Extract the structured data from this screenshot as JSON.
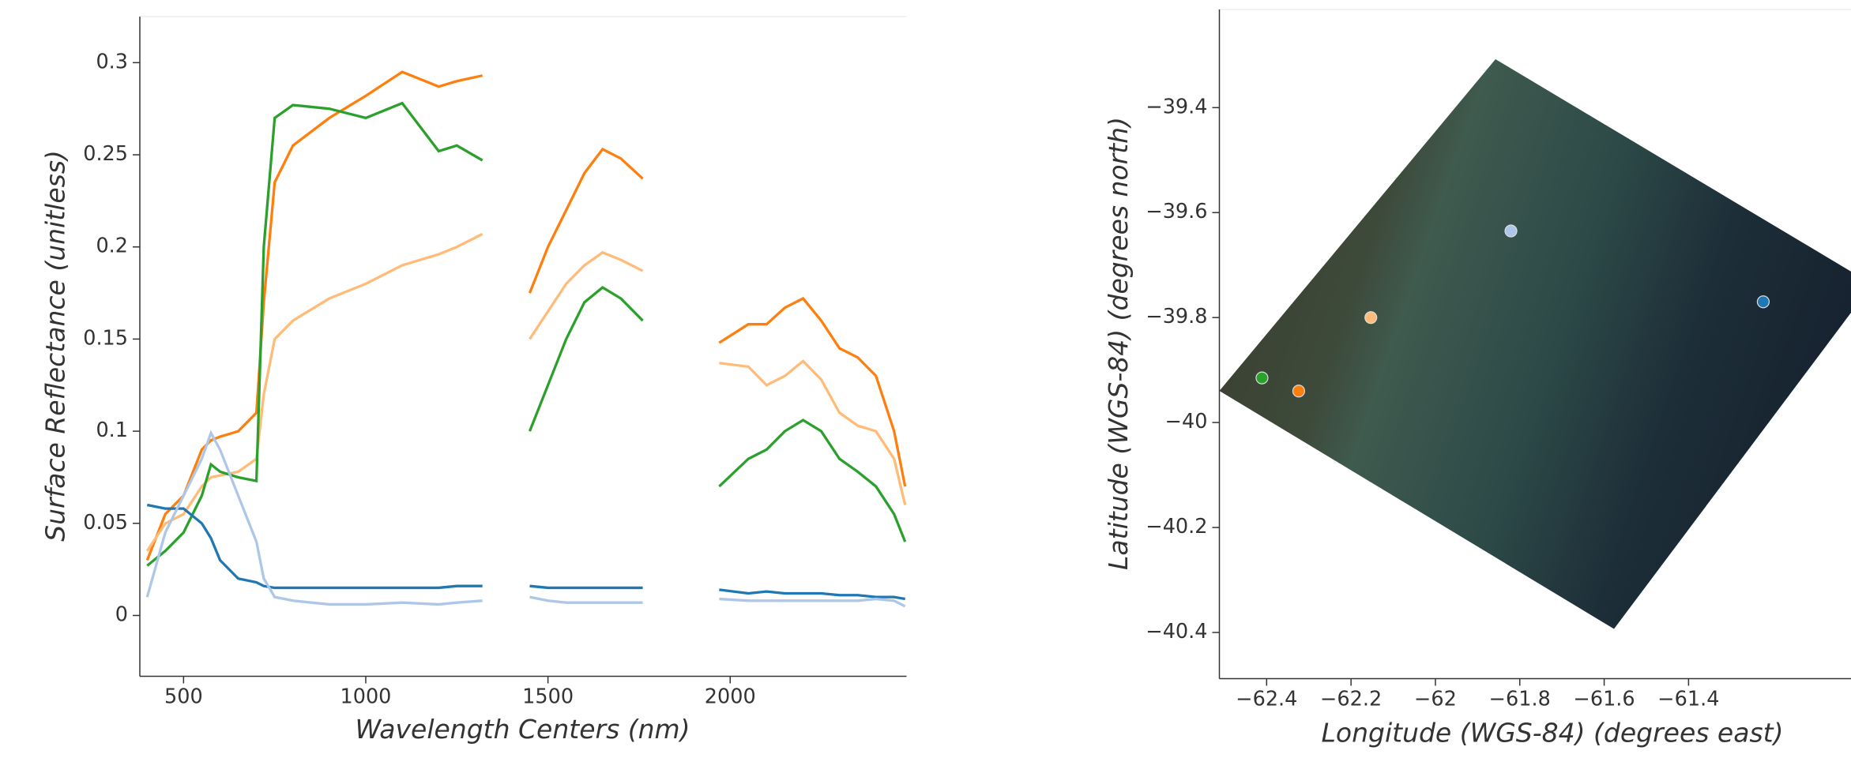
{
  "chart_data": [
    {
      "type": "line",
      "xlabel": "Wavelength Centers (nm)",
      "ylabel": "Surface Reflectance (unitless)",
      "x": [
        400,
        450,
        500,
        550,
        575,
        600,
        650,
        700,
        720,
        750,
        800,
        900,
        1000,
        1100,
        1200,
        1250,
        1320,
        1380,
        1450,
        1500,
        1550,
        1600,
        1650,
        1700,
        1760,
        1860,
        1970,
        2050,
        2100,
        2150,
        2200,
        2250,
        2300,
        2350,
        2400,
        2450,
        2480
      ],
      "series": [
        {
          "color": "#ff7f0e",
          "values": [
            0.03,
            0.055,
            0.065,
            0.09,
            0.095,
            0.097,
            0.1,
            0.11,
            0.17,
            0.235,
            0.255,
            0.27,
            0.282,
            0.295,
            0.287,
            0.29,
            0.293,
            null,
            0.175,
            0.2,
            0.22,
            0.24,
            0.253,
            0.248,
            0.237,
            null,
            0.148,
            0.158,
            0.158,
            0.167,
            0.172,
            0.16,
            0.145,
            0.14,
            0.13,
            0.1,
            0.07
          ]
        },
        {
          "color": "#ffbb78",
          "values": [
            0.035,
            0.05,
            0.055,
            0.07,
            0.075,
            0.076,
            0.078,
            0.085,
            0.12,
            0.15,
            0.16,
            0.172,
            0.18,
            0.19,
            0.196,
            0.2,
            0.207,
            null,
            0.15,
            0.165,
            0.18,
            0.19,
            0.197,
            0.193,
            0.187,
            null,
            0.137,
            0.135,
            0.125,
            0.13,
            0.138,
            0.128,
            0.11,
            0.103,
            0.1,
            0.085,
            0.06
          ]
        },
        {
          "color": "#2ca02c",
          "values": [
            0.027,
            0.035,
            0.045,
            0.065,
            0.082,
            0.078,
            0.075,
            0.073,
            0.2,
            0.27,
            0.277,
            0.275,
            0.27,
            0.278,
            0.252,
            0.255,
            0.247,
            null,
            0.1,
            0.125,
            0.15,
            0.17,
            0.178,
            0.172,
            0.16,
            null,
            0.07,
            0.085,
            0.09,
            0.1,
            0.106,
            0.1,
            0.085,
            0.078,
            0.07,
            0.055,
            0.04
          ]
        },
        {
          "color": "#1f77b4",
          "values": [
            0.06,
            0.058,
            0.058,
            0.05,
            0.042,
            0.03,
            0.02,
            0.018,
            0.016,
            0.015,
            0.015,
            0.015,
            0.015,
            0.015,
            0.015,
            0.016,
            0.016,
            null,
            0.016,
            0.015,
            0.015,
            0.015,
            0.015,
            0.015,
            0.015,
            null,
            0.014,
            0.012,
            0.013,
            0.012,
            0.012,
            0.012,
            0.011,
            0.011,
            0.01,
            0.01,
            0.009
          ]
        },
        {
          "color": "#aec7e8",
          "values": [
            0.01,
            0.045,
            0.065,
            0.085,
            0.099,
            0.09,
            0.065,
            0.04,
            0.02,
            0.01,
            0.008,
            0.006,
            0.006,
            0.007,
            0.006,
            0.007,
            0.008,
            null,
            0.01,
            0.008,
            0.007,
            0.007,
            0.007,
            0.007,
            0.007,
            null,
            0.009,
            0.008,
            0.008,
            0.008,
            0.008,
            0.008,
            0.008,
            0.008,
            0.009,
            0.008,
            0.005
          ]
        }
      ],
      "xlim": [
        380,
        2484
      ],
      "ylim": [
        -0.033,
        0.325
      ],
      "xticks": [
        500,
        1000,
        1500,
        2000
      ],
      "yticks": [
        0,
        0.05,
        0.1,
        0.15,
        0.2,
        0.25,
        0.3
      ]
    },
    {
      "type": "scatter",
      "xlabel": "Longitude (WGS-84) (degrees east)",
      "ylabel": "Latitude (WGS-84) (degrees north)",
      "x": [
        -61.821,
        -61.223,
        -62.153,
        -62.411,
        -62.324
      ],
      "y": [
        -39.635,
        -39.77,
        -39.8,
        -39.915,
        -39.94
      ],
      "colors": [
        "#aec7e8",
        "#1f77b4",
        "#ffbb78",
        "#2ca02c",
        "#ff7f0e"
      ],
      "xlim": [
        -62.512,
        -61.015
      ],
      "ylim": [
        -40.488,
        -39.213
      ],
      "xticks": [
        {
          "value": -62.4,
          "label": "−62.4"
        },
        {
          "value": -62.2,
          "label": "−62.2"
        },
        {
          "value": -62,
          "label": "−62"
        },
        {
          "value": -61.8,
          "label": "−61.8"
        },
        {
          "value": -61.6,
          "label": "−61.6"
        },
        {
          "value": -61.4,
          "label": "−61.4"
        }
      ],
      "yticks": [
        {
          "value": -39.4,
          "label": "−39.4"
        },
        {
          "value": -39.6,
          "label": "−39.6"
        },
        {
          "value": -39.8,
          "label": "−39.8"
        },
        {
          "value": -40,
          "label": "−40"
        },
        {
          "value": -40.2,
          "label": "−40.2"
        },
        {
          "value": -40.4,
          "label": "−40.4"
        }
      ]
    }
  ]
}
